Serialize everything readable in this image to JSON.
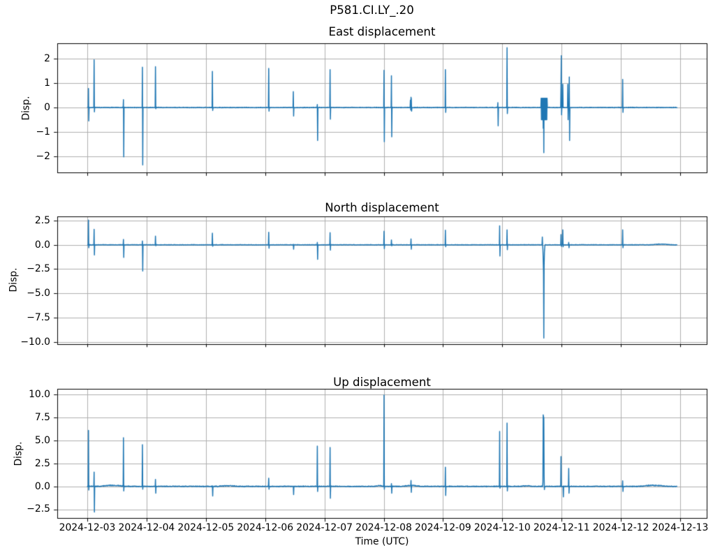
{
  "figure": {
    "suptitle": "P581.CI.LY_.20",
    "xlabel": "Time (UTC)",
    "background": "#ffffff",
    "line_color": "#1f77b4",
    "grid_color": "#b0b0b0",
    "spine_color": "#000000",
    "x_tick_labels": [
      "2024-12-03",
      "2024-12-04",
      "2024-12-05",
      "2024-12-06",
      "2024-12-07",
      "2024-12-08",
      "2024-12-09",
      "2024-12-10",
      "2024-12-11",
      "2024-12-12",
      "2024-12-13"
    ]
  },
  "chart_data": [
    {
      "type": "line",
      "title": "East displacement",
      "ylabel": "Disp.",
      "xlabel": "Time (UTC)",
      "x_start_date": "2024-12-03",
      "x_range_days": [
        0,
        9.95
      ],
      "ylim": [
        -2.67,
        2.63
      ],
      "y_ticks": [
        {
          "v": 2,
          "label": "2"
        },
        {
          "v": 1,
          "label": "1"
        },
        {
          "v": 0,
          "label": "0"
        },
        {
          "v": -1,
          "label": "−1"
        },
        {
          "v": -2,
          "label": "−2"
        }
      ],
      "baseline": 0,
      "noise_amp": 0.015,
      "spikes": [
        [
          0.02,
          0.78,
          -0.55
        ],
        [
          0.114,
          1.95,
          -0.18
        ],
        [
          0.609,
          0.32,
          -2.02
        ],
        [
          0.93,
          1.65,
          -2.35
        ],
        [
          1.151,
          1.67,
          -0.05
        ],
        [
          2.108,
          1.48,
          -0.12
        ],
        [
          3.062,
          1.6,
          -0.15
        ],
        [
          3.474,
          0.65,
          -0.35
        ],
        [
          3.879,
          0.12,
          -1.35
        ],
        [
          4.095,
          1.55,
          -0.48
        ],
        [
          5.006,
          1.52,
          -1.4
        ],
        [
          5.132,
          1.3,
          -1.2
        ],
        [
          6.042,
          1.55,
          -0.2
        ],
        [
          6.926,
          0.2,
          -0.75
        ],
        [
          7.082,
          2.45,
          -0.25
        ],
        [
          7.989,
          0.9,
          null
        ],
        [
          7.995,
          2.12,
          -0.3
        ],
        [
          8.021,
          0.95,
          null
        ],
        [
          8.103,
          0.95,
          -0.5
        ],
        [
          8.13,
          1.25,
          -1.35
        ],
        [
          9.03,
          1.15,
          -0.2
        ]
      ],
      "osc_blocks": [
        {
          "t0": 7.656,
          "t1": 7.756,
          "hi": 0.38,
          "lo": -0.5
        }
      ],
      "points": [
        [
          5.45,
          0.3
        ],
        [
          5.455,
          -0.1
        ],
        [
          5.46,
          0.42
        ],
        [
          5.465,
          0.35
        ],
        [
          5.47,
          -0.15
        ],
        [
          7.69,
          -0.85
        ],
        [
          7.7,
          -1.85
        ]
      ],
      "bumps": []
    },
    {
      "type": "line",
      "title": "North displacement",
      "ylabel": "Disp.",
      "xlabel": "Time (UTC)",
      "x_start_date": "2024-12-03",
      "x_range_days": [
        0,
        9.95
      ],
      "ylim": [
        -10.22,
        2.93
      ],
      "y_ticks": [
        {
          "v": 2.5,
          "label": "2.5"
        },
        {
          "v": 0,
          "label": "0.0"
        },
        {
          "v": -2.5,
          "label": "−2.5"
        },
        {
          "v": -5,
          "label": "−5.0"
        },
        {
          "v": -7.5,
          "label": "−7.5"
        },
        {
          "v": -10,
          "label": "−10.0"
        }
      ],
      "baseline": 0,
      "noise_amp": 0.03,
      "spikes": [
        [
          0.02,
          2.55,
          -0.3
        ],
        [
          0.114,
          1.6,
          -1.05
        ],
        [
          0.609,
          0.55,
          -1.3
        ],
        [
          0.93,
          0.4,
          -2.7
        ],
        [
          1.151,
          0.9,
          -0.1
        ],
        [
          2.108,
          1.2,
          -0.15
        ],
        [
          3.062,
          1.3,
          -0.35
        ],
        [
          3.474,
          0.05,
          -0.45
        ],
        [
          3.879,
          0.25,
          -1.5
        ],
        [
          4.095,
          1.25,
          -0.55
        ],
        [
          5.006,
          1.4,
          -0.4
        ],
        [
          5.132,
          0.5,
          -0.1
        ],
        [
          5.46,
          0.6,
          -0.45
        ],
        [
          6.042,
          1.5,
          -0.2
        ],
        [
          6.953,
          1.95,
          -1.15
        ],
        [
          7.082,
          1.55,
          -0.5
        ],
        [
          7.989,
          1.05,
          -0.15
        ],
        [
          8.021,
          1.55,
          -0.2
        ],
        [
          8.119,
          0.25,
          -0.3
        ],
        [
          9.03,
          1.55,
          -0.3
        ]
      ],
      "osc_blocks": [],
      "points": [
        [
          7.675,
          0.8
        ],
        [
          7.685,
          -0.5
        ],
        [
          7.69,
          -1.5
        ],
        [
          7.695,
          -2.8
        ],
        [
          7.7,
          -9.6
        ],
        [
          7.705,
          -2.2
        ],
        [
          7.71,
          -0.8
        ],
        [
          7.715,
          -0.3
        ]
      ],
      "bumps": [
        {
          "t0": 9.5,
          "t1": 9.85,
          "a": 0.08
        }
      ]
    },
    {
      "type": "line",
      "title": "Up displacement",
      "ylabel": "Disp.",
      "xlabel": "Time (UTC)",
      "x_start_date": "2024-12-03",
      "x_range_days": [
        0,
        9.95
      ],
      "ylim": [
        -3.5,
        10.6
      ],
      "y_ticks": [
        {
          "v": 10,
          "label": "10.0"
        },
        {
          "v": 7.5,
          "label": "7.5"
        },
        {
          "v": 5,
          "label": "5.0"
        },
        {
          "v": 2.5,
          "label": "2.5"
        },
        {
          "v": 0,
          "label": "0.0"
        },
        {
          "v": -2.5,
          "label": "−2.5"
        }
      ],
      "baseline": 0,
      "noise_amp": 0.055,
      "spikes": [
        [
          0.02,
          6.1,
          -0.4
        ],
        [
          0.114,
          1.55,
          -2.8
        ],
        [
          0.609,
          5.3,
          -0.5
        ],
        [
          0.93,
          4.55,
          -0.3
        ],
        [
          1.151,
          0.75,
          -0.75
        ],
        [
          2.108,
          0.05,
          -1.05
        ],
        [
          3.062,
          0.9,
          -0.3
        ],
        [
          3.474,
          null,
          -0.9
        ],
        [
          3.879,
          4.4,
          -0.55
        ],
        [
          4.095,
          4.25,
          -1.3
        ],
        [
          5.006,
          9.95,
          -0.3
        ],
        [
          5.132,
          0.3,
          -0.75
        ],
        [
          5.46,
          0.65,
          -0.65
        ],
        [
          6.042,
          2.1,
          -1.0
        ],
        [
          6.953,
          6.0,
          -0.2
        ],
        [
          7.082,
          6.9,
          -0.5
        ],
        [
          7.989,
          3.25,
          null
        ],
        [
          8.119,
          1.95,
          -0.75
        ],
        [
          9.03,
          0.6,
          -0.55
        ]
      ],
      "osc_blocks": [],
      "points": [
        [
          7.685,
          0.5
        ],
        [
          7.69,
          7.8
        ],
        [
          7.695,
          7.6
        ],
        [
          7.7,
          7.5
        ],
        [
          7.705,
          1.2
        ],
        [
          7.71,
          -0.35
        ],
        [
          8.03,
          -1.15
        ]
      ],
      "bumps": [
        {
          "t0": 0.2,
          "t1": 0.65,
          "a": 0.13
        },
        {
          "t0": 2.2,
          "t1": 2.55,
          "a": 0.09
        },
        {
          "t0": 4.85,
          "t1": 5.0,
          "a": 0.1
        },
        {
          "t0": 5.3,
          "t1": 5.62,
          "a": 0.12
        },
        {
          "t0": 7.3,
          "t1": 7.5,
          "a": 0.09
        },
        {
          "t0": 9.3,
          "t1": 9.8,
          "a": 0.13
        }
      ]
    }
  ]
}
